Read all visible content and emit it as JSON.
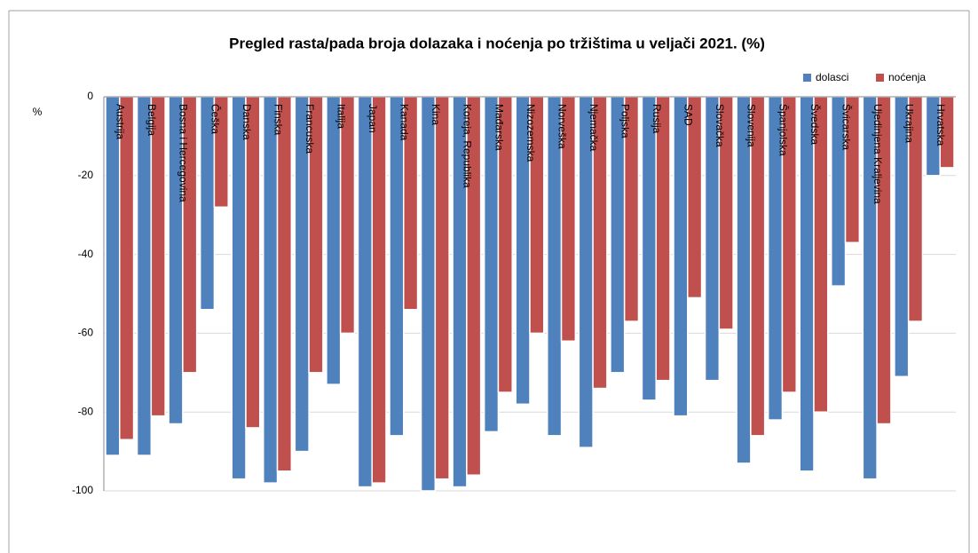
{
  "chart_data": {
    "type": "bar",
    "title": "Pregled rasta/pada broja dolazaka i noćenja po tržištima u veljači 2021. (%)",
    "y_label": "%",
    "categories": [
      "Austrija",
      "Belgija",
      "Bosna i Hercegovina",
      "Češka",
      "Danska",
      "Finska",
      "Francuska",
      "Italija",
      "Japan",
      "Kanada",
      "Kina",
      "Koreja, Republika",
      "Mađarska",
      "Nizozemska",
      "Norveška",
      "Njemačka",
      "Poljska",
      "Rusija",
      "SAD",
      "Slovačka",
      "Slovenija",
      "Španjolska",
      "Švedska",
      "Švicarska",
      "Ujedinjena Kraljevina",
      "Ukrajina",
      "Hrvatska"
    ],
    "series": [
      {
        "name": "dolasci",
        "color": "#4f81bd",
        "values": [
          -91,
          -91,
          -83,
          -54,
          -97,
          -98,
          -90,
          -73,
          -99,
          -86,
          -100,
          -99,
          -85,
          -78,
          -86,
          -89,
          -70,
          -77,
          -81,
          -72,
          -93,
          -82,
          -95,
          -48,
          -97,
          -71,
          -20
        ]
      },
      {
        "name": "noćenja",
        "color": "#c0504d",
        "values": [
          -87,
          -81,
          -70,
          -28,
          -84,
          -95,
          -70,
          -60,
          -98,
          -54,
          -97,
          -96,
          -75,
          -60,
          -62,
          -74,
          -57,
          -72,
          -51,
          -59,
          -86,
          -75,
          -80,
          -37,
          -83,
          -57,
          -18
        ]
      }
    ],
    "ylim": [
      -100,
      0
    ],
    "yticks": [
      0,
      -20,
      -40,
      -60,
      -80,
      -100
    ],
    "grid": true,
    "legend": "top-right"
  }
}
